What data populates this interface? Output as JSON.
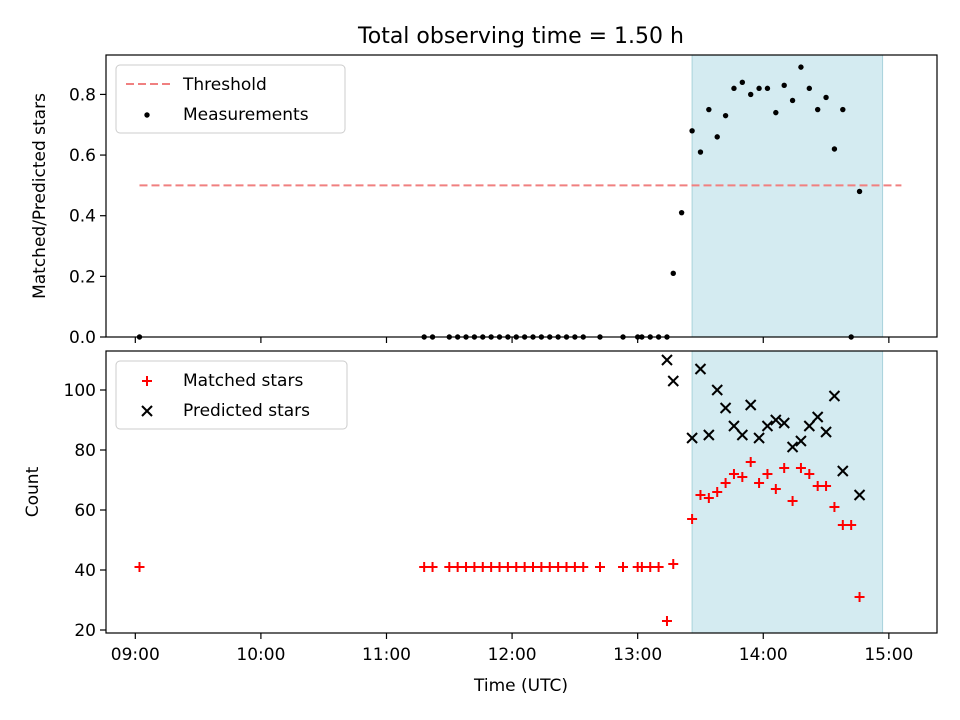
{
  "figure": {
    "title": "Total observing time = 1.50 h",
    "xlabel": "Time (UTC)",
    "x_ticks": [
      "09:00",
      "10:00",
      "11:00",
      "12:00",
      "13:00",
      "14:00",
      "15:00"
    ],
    "x_range": [
      "08:46",
      "15:23"
    ],
    "shaded_interval": [
      "13:26",
      "14:57"
    ],
    "shade_color": "#d4ebf1"
  },
  "chart_data": [
    {
      "type": "scatter",
      "panel": "top",
      "ylabel": "Matched/Predicted stars",
      "ylim": [
        0,
        0.93
      ],
      "y_ticks": [
        "0.0",
        "0.2",
        "0.4",
        "0.6",
        "0.8"
      ],
      "legend_position": "upper-left",
      "threshold": {
        "name": "Threshold",
        "value": 0.5,
        "x": [
          "09:02",
          "15:06"
        ],
        "color": "#f08080"
      },
      "series": [
        {
          "name": "Measurements",
          "color": "#000000",
          "points": [
            [
              "09:02",
              0.0
            ],
            [
              "11:18",
              0.0
            ],
            [
              "11:22",
              0.0
            ],
            [
              "11:30",
              0.0
            ],
            [
              "11:34",
              0.0
            ],
            [
              "11:38",
              0.0
            ],
            [
              "11:42",
              0.0
            ],
            [
              "11:46",
              0.0
            ],
            [
              "11:50",
              0.0
            ],
            [
              "11:54",
              0.0
            ],
            [
              "11:58",
              0.0
            ],
            [
              "12:02",
              0.0
            ],
            [
              "12:06",
              0.0
            ],
            [
              "12:10",
              0.0
            ],
            [
              "12:14",
              0.0
            ],
            [
              "12:18",
              0.0
            ],
            [
              "12:22",
              0.0
            ],
            [
              "12:26",
              0.0
            ],
            [
              "12:30",
              0.0
            ],
            [
              "12:34",
              0.0
            ],
            [
              "12:42",
              0.0
            ],
            [
              "12:53",
              0.0
            ],
            [
              "13:00",
              0.0
            ],
            [
              "13:02",
              0.0
            ],
            [
              "13:06",
              0.0
            ],
            [
              "13:10",
              0.0
            ],
            [
              "13:14",
              0.0
            ],
            [
              "13:17",
              0.21
            ],
            [
              "13:21",
              0.41
            ],
            [
              "13:26",
              0.68
            ],
            [
              "13:30",
              0.61
            ],
            [
              "13:34",
              0.75
            ],
            [
              "13:38",
              0.66
            ],
            [
              "13:42",
              0.73
            ],
            [
              "13:46",
              0.82
            ],
            [
              "13:50",
              0.84
            ],
            [
              "13:54",
              0.8
            ],
            [
              "13:58",
              0.82
            ],
            [
              "14:02",
              0.82
            ],
            [
              "14:06",
              0.74
            ],
            [
              "14:10",
              0.83
            ],
            [
              "14:14",
              0.78
            ],
            [
              "14:18",
              0.89
            ],
            [
              "14:22",
              0.82
            ],
            [
              "14:26",
              0.75
            ],
            [
              "14:30",
              0.79
            ],
            [
              "14:34",
              0.62
            ],
            [
              "14:38",
              0.75
            ],
            [
              "14:42",
              0.0
            ],
            [
              "14:46",
              0.48
            ]
          ]
        }
      ]
    },
    {
      "type": "scatter",
      "panel": "bottom",
      "ylabel": "Count",
      "ylim": [
        19,
        113
      ],
      "y_ticks": [
        "20",
        "40",
        "60",
        "80",
        "100"
      ],
      "legend_position": "upper-left",
      "series": [
        {
          "name": "Matched stars",
          "marker": "plus",
          "color": "#ff0000",
          "points": [
            [
              "09:02",
              41
            ],
            [
              "11:18",
              41
            ],
            [
              "11:22",
              41
            ],
            [
              "11:30",
              41
            ],
            [
              "11:34",
              41
            ],
            [
              "11:38",
              41
            ],
            [
              "11:42",
              41
            ],
            [
              "11:46",
              41
            ],
            [
              "11:50",
              41
            ],
            [
              "11:54",
              41
            ],
            [
              "11:58",
              41
            ],
            [
              "12:02",
              41
            ],
            [
              "12:06",
              41
            ],
            [
              "12:10",
              41
            ],
            [
              "12:14",
              41
            ],
            [
              "12:18",
              41
            ],
            [
              "12:22",
              41
            ],
            [
              "12:26",
              41
            ],
            [
              "12:30",
              41
            ],
            [
              "12:34",
              41
            ],
            [
              "12:42",
              41
            ],
            [
              "12:53",
              41
            ],
            [
              "13:00",
              41
            ],
            [
              "13:02",
              41
            ],
            [
              "13:06",
              41
            ],
            [
              "13:10",
              41
            ],
            [
              "13:14",
              23
            ],
            [
              "13:17",
              42
            ],
            [
              "13:26",
              57
            ],
            [
              "13:30",
              65
            ],
            [
              "13:34",
              64
            ],
            [
              "13:38",
              66
            ],
            [
              "13:42",
              69
            ],
            [
              "13:46",
              72
            ],
            [
              "13:50",
              71
            ],
            [
              "13:54",
              76
            ],
            [
              "13:58",
              69
            ],
            [
              "14:02",
              72
            ],
            [
              "14:06",
              67
            ],
            [
              "14:10",
              74
            ],
            [
              "14:14",
              63
            ],
            [
              "14:18",
              74
            ],
            [
              "14:22",
              72
            ],
            [
              "14:26",
              68
            ],
            [
              "14:30",
              68
            ],
            [
              "14:34",
              61
            ],
            [
              "14:38",
              55
            ],
            [
              "14:42",
              55
            ],
            [
              "14:46",
              31
            ]
          ]
        },
        {
          "name": "Predicted stars",
          "marker": "x",
          "color": "#000000",
          "points": [
            [
              "13:14",
              110
            ],
            [
              "13:17",
              103
            ],
            [
              "13:26",
              84
            ],
            [
              "13:30",
              107
            ],
            [
              "13:34",
              85
            ],
            [
              "13:38",
              100
            ],
            [
              "13:42",
              94
            ],
            [
              "13:46",
              88
            ],
            [
              "13:50",
              85
            ],
            [
              "13:54",
              95
            ],
            [
              "13:58",
              84
            ],
            [
              "14:02",
              88
            ],
            [
              "14:06",
              90
            ],
            [
              "14:10",
              89
            ],
            [
              "14:14",
              81
            ],
            [
              "14:18",
              83
            ],
            [
              "14:22",
              88
            ],
            [
              "14:26",
              91
            ],
            [
              "14:30",
              86
            ],
            [
              "14:34",
              98
            ],
            [
              "14:38",
              73
            ],
            [
              "14:46",
              65
            ]
          ]
        }
      ]
    }
  ]
}
